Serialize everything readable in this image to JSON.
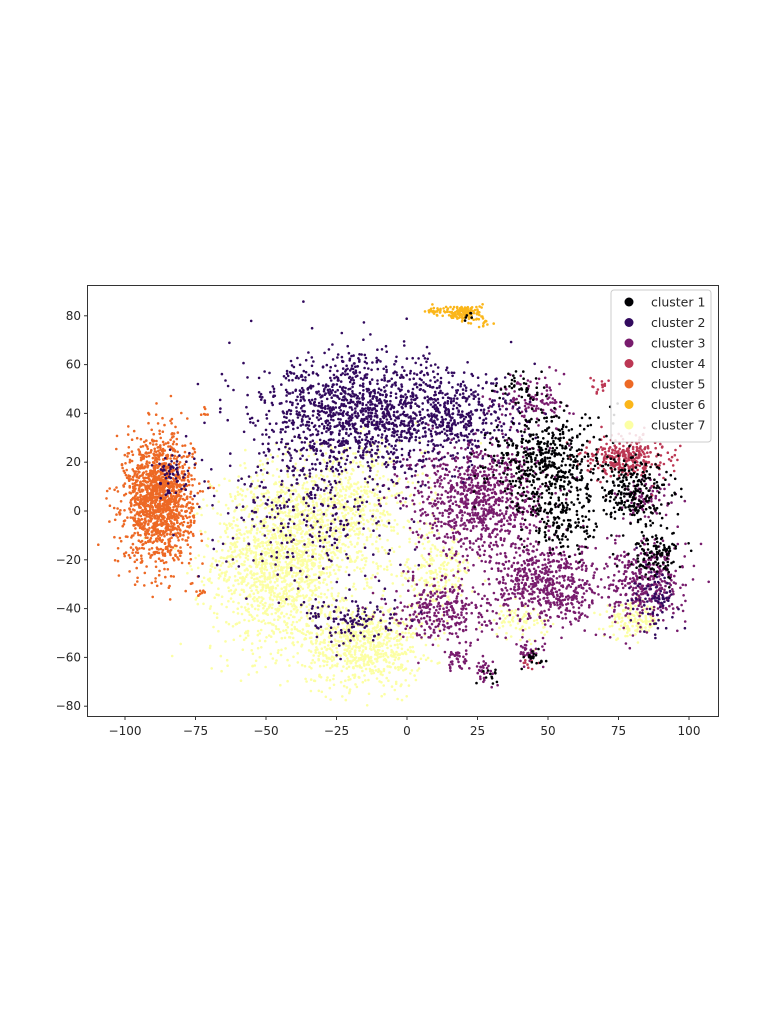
{
  "chart_data": {
    "type": "scatter",
    "title": "",
    "xlabel": "",
    "ylabel": "",
    "xlim": [
      -113,
      110
    ],
    "ylim": [
      -85,
      92
    ],
    "grid": false,
    "legend_position": "upper right",
    "xticks": [
      -100,
      -75,
      -50,
      -25,
      0,
      25,
      50,
      75,
      100
    ],
    "xtick_labels": [
      "−100",
      "−75",
      "−50",
      "−25",
      "0",
      "25",
      "50",
      "75",
      "100"
    ],
    "yticks": [
      80,
      60,
      40,
      20,
      0,
      -20,
      -40,
      -60,
      -80
    ],
    "ytick_labels": [
      "80",
      "60",
      "40",
      "20",
      "0",
      "−20",
      "−40",
      "−60",
      "−80"
    ],
    "series": [
      {
        "name": "cluster 1",
        "color": "#000004",
        "regions": [
          {
            "cx": 50,
            "cy": 20,
            "sx": 12,
            "sy": 12,
            "n": 500
          },
          {
            "cx": 80,
            "cy": 8,
            "sx": 8,
            "sy": 8,
            "n": 250
          },
          {
            "cx": 88,
            "cy": -18,
            "sx": 5,
            "sy": 5,
            "n": 120
          },
          {
            "cx": 55,
            "cy": -5,
            "sx": 8,
            "sy": 8,
            "n": 150
          },
          {
            "cx": 40,
            "cy": 50,
            "sx": 5,
            "sy": 4,
            "n": 40
          },
          {
            "cx": 45,
            "cy": -60,
            "sx": 2,
            "sy": 2,
            "n": 20
          },
          {
            "cx": 29,
            "cy": -67,
            "sx": 2,
            "sy": 2,
            "n": 12
          },
          {
            "cx": 22,
            "cy": 80,
            "sx": 2,
            "sy": 1,
            "n": 6
          }
        ]
      },
      {
        "name": "cluster 2",
        "color": "#320a5e",
        "regions": [
          {
            "cx": -15,
            "cy": 40,
            "sx": 22,
            "sy": 14,
            "n": 1400
          },
          {
            "cx": 20,
            "cy": 38,
            "sx": 12,
            "sy": 10,
            "n": 300
          },
          {
            "cx": -35,
            "cy": 0,
            "sx": 18,
            "sy": 18,
            "n": 300
          },
          {
            "cx": -20,
            "cy": -45,
            "sx": 10,
            "sy": 6,
            "n": 120
          },
          {
            "cx": -82,
            "cy": 15,
            "sx": 4,
            "sy": 5,
            "n": 60
          },
          {
            "cx": 88,
            "cy": -35,
            "sx": 5,
            "sy": 8,
            "n": 80
          }
        ]
      },
      {
        "name": "cluster 3",
        "color": "#781c6d",
        "regions": [
          {
            "cx": 25,
            "cy": 5,
            "sx": 14,
            "sy": 14,
            "n": 900
          },
          {
            "cx": 50,
            "cy": -30,
            "sx": 12,
            "sy": 10,
            "n": 600
          },
          {
            "cx": 85,
            "cy": -30,
            "sx": 8,
            "sy": 10,
            "n": 350
          },
          {
            "cx": 12,
            "cy": -40,
            "sx": 10,
            "sy": 8,
            "n": 300
          },
          {
            "cx": 45,
            "cy": 45,
            "sx": 8,
            "sy": 6,
            "n": 120
          },
          {
            "cx": 18,
            "cy": -60,
            "sx": 3,
            "sy": 3,
            "n": 40
          },
          {
            "cx": 43,
            "cy": -58,
            "sx": 3,
            "sy": 3,
            "n": 40
          },
          {
            "cx": 28,
            "cy": -65,
            "sx": 2,
            "sy": 3,
            "n": 30
          },
          {
            "cx": 85,
            "cy": 5,
            "sx": 6,
            "sy": 5,
            "n": 80
          }
        ]
      },
      {
        "name": "cluster 4",
        "color": "#bc3754",
        "regions": [
          {
            "cx": 78,
            "cy": 22,
            "sx": 8,
            "sy": 5,
            "n": 300
          },
          {
            "cx": 68,
            "cy": 52,
            "sx": 2,
            "sy": 2,
            "n": 15
          },
          {
            "cx": 44,
            "cy": -62,
            "sx": 1.5,
            "sy": 1.5,
            "n": 8
          }
        ]
      },
      {
        "name": "cluster 5",
        "color": "#ed6925",
        "regions": [
          {
            "cx": -88,
            "cy": 5,
            "sx": 7,
            "sy": 15,
            "n": 1500
          },
          {
            "cx": -73,
            "cy": -33,
            "sx": 1.5,
            "sy": 1,
            "n": 10
          },
          {
            "cx": -72,
            "cy": 40,
            "sx": 1,
            "sy": 2,
            "n": 6
          }
        ]
      },
      {
        "name": "cluster 6",
        "color": "#fbb61a",
        "regions": [
          {
            "cx": 20,
            "cy": 81,
            "sx": 4,
            "sy": 2,
            "n": 150
          },
          {
            "cx": 10,
            "cy": 82,
            "sx": 1.5,
            "sy": 1,
            "n": 20
          },
          {
            "cx": 27,
            "cy": 77,
            "sx": 2,
            "sy": 1,
            "n": 12
          }
        ]
      },
      {
        "name": "cluster 7",
        "color": "#fcffa4",
        "regions": [
          {
            "cx": -45,
            "cy": -20,
            "sx": 14,
            "sy": 22,
            "n": 1600
          },
          {
            "cx": -15,
            "cy": -55,
            "sx": 12,
            "sy": 10,
            "n": 700
          },
          {
            "cx": -20,
            "cy": 0,
            "sx": 15,
            "sy": 15,
            "n": 600
          },
          {
            "cx": 80,
            "cy": -45,
            "sx": 6,
            "sy": 4,
            "n": 150
          },
          {
            "cx": 10,
            "cy": -25,
            "sx": 8,
            "sy": 8,
            "n": 200
          },
          {
            "cx": 40,
            "cy": -45,
            "sx": 6,
            "sy": 4,
            "n": 80
          }
        ]
      }
    ]
  },
  "legend": {
    "items": [
      {
        "label": "cluster 1",
        "color": "#000004"
      },
      {
        "label": "cluster 2",
        "color": "#320a5e"
      },
      {
        "label": "cluster 3",
        "color": "#781c6d"
      },
      {
        "label": "cluster 4",
        "color": "#bc3754"
      },
      {
        "label": "cluster 5",
        "color": "#ed6925"
      },
      {
        "label": "cluster 6",
        "color": "#fbb61a"
      },
      {
        "label": "cluster 7",
        "color": "#fcffa4"
      }
    ]
  },
  "axes": {
    "xticks": [
      {
        "value": -100,
        "label": "−100"
      },
      {
        "value": -75,
        "label": "−75"
      },
      {
        "value": -50,
        "label": "−50"
      },
      {
        "value": -25,
        "label": "−25"
      },
      {
        "value": 0,
        "label": "0"
      },
      {
        "value": 25,
        "label": "25"
      },
      {
        "value": 50,
        "label": "50"
      },
      {
        "value": 75,
        "label": "75"
      },
      {
        "value": 100,
        "label": "100"
      }
    ],
    "yticks": [
      {
        "value": 80,
        "label": "80"
      },
      {
        "value": 60,
        "label": "60"
      },
      {
        "value": 40,
        "label": "40"
      },
      {
        "value": 20,
        "label": "20"
      },
      {
        "value": 0,
        "label": "0"
      },
      {
        "value": -20,
        "label": "−20"
      },
      {
        "value": -40,
        "label": "−40"
      },
      {
        "value": -60,
        "label": "−60"
      },
      {
        "value": -80,
        "label": "−80"
      }
    ]
  }
}
